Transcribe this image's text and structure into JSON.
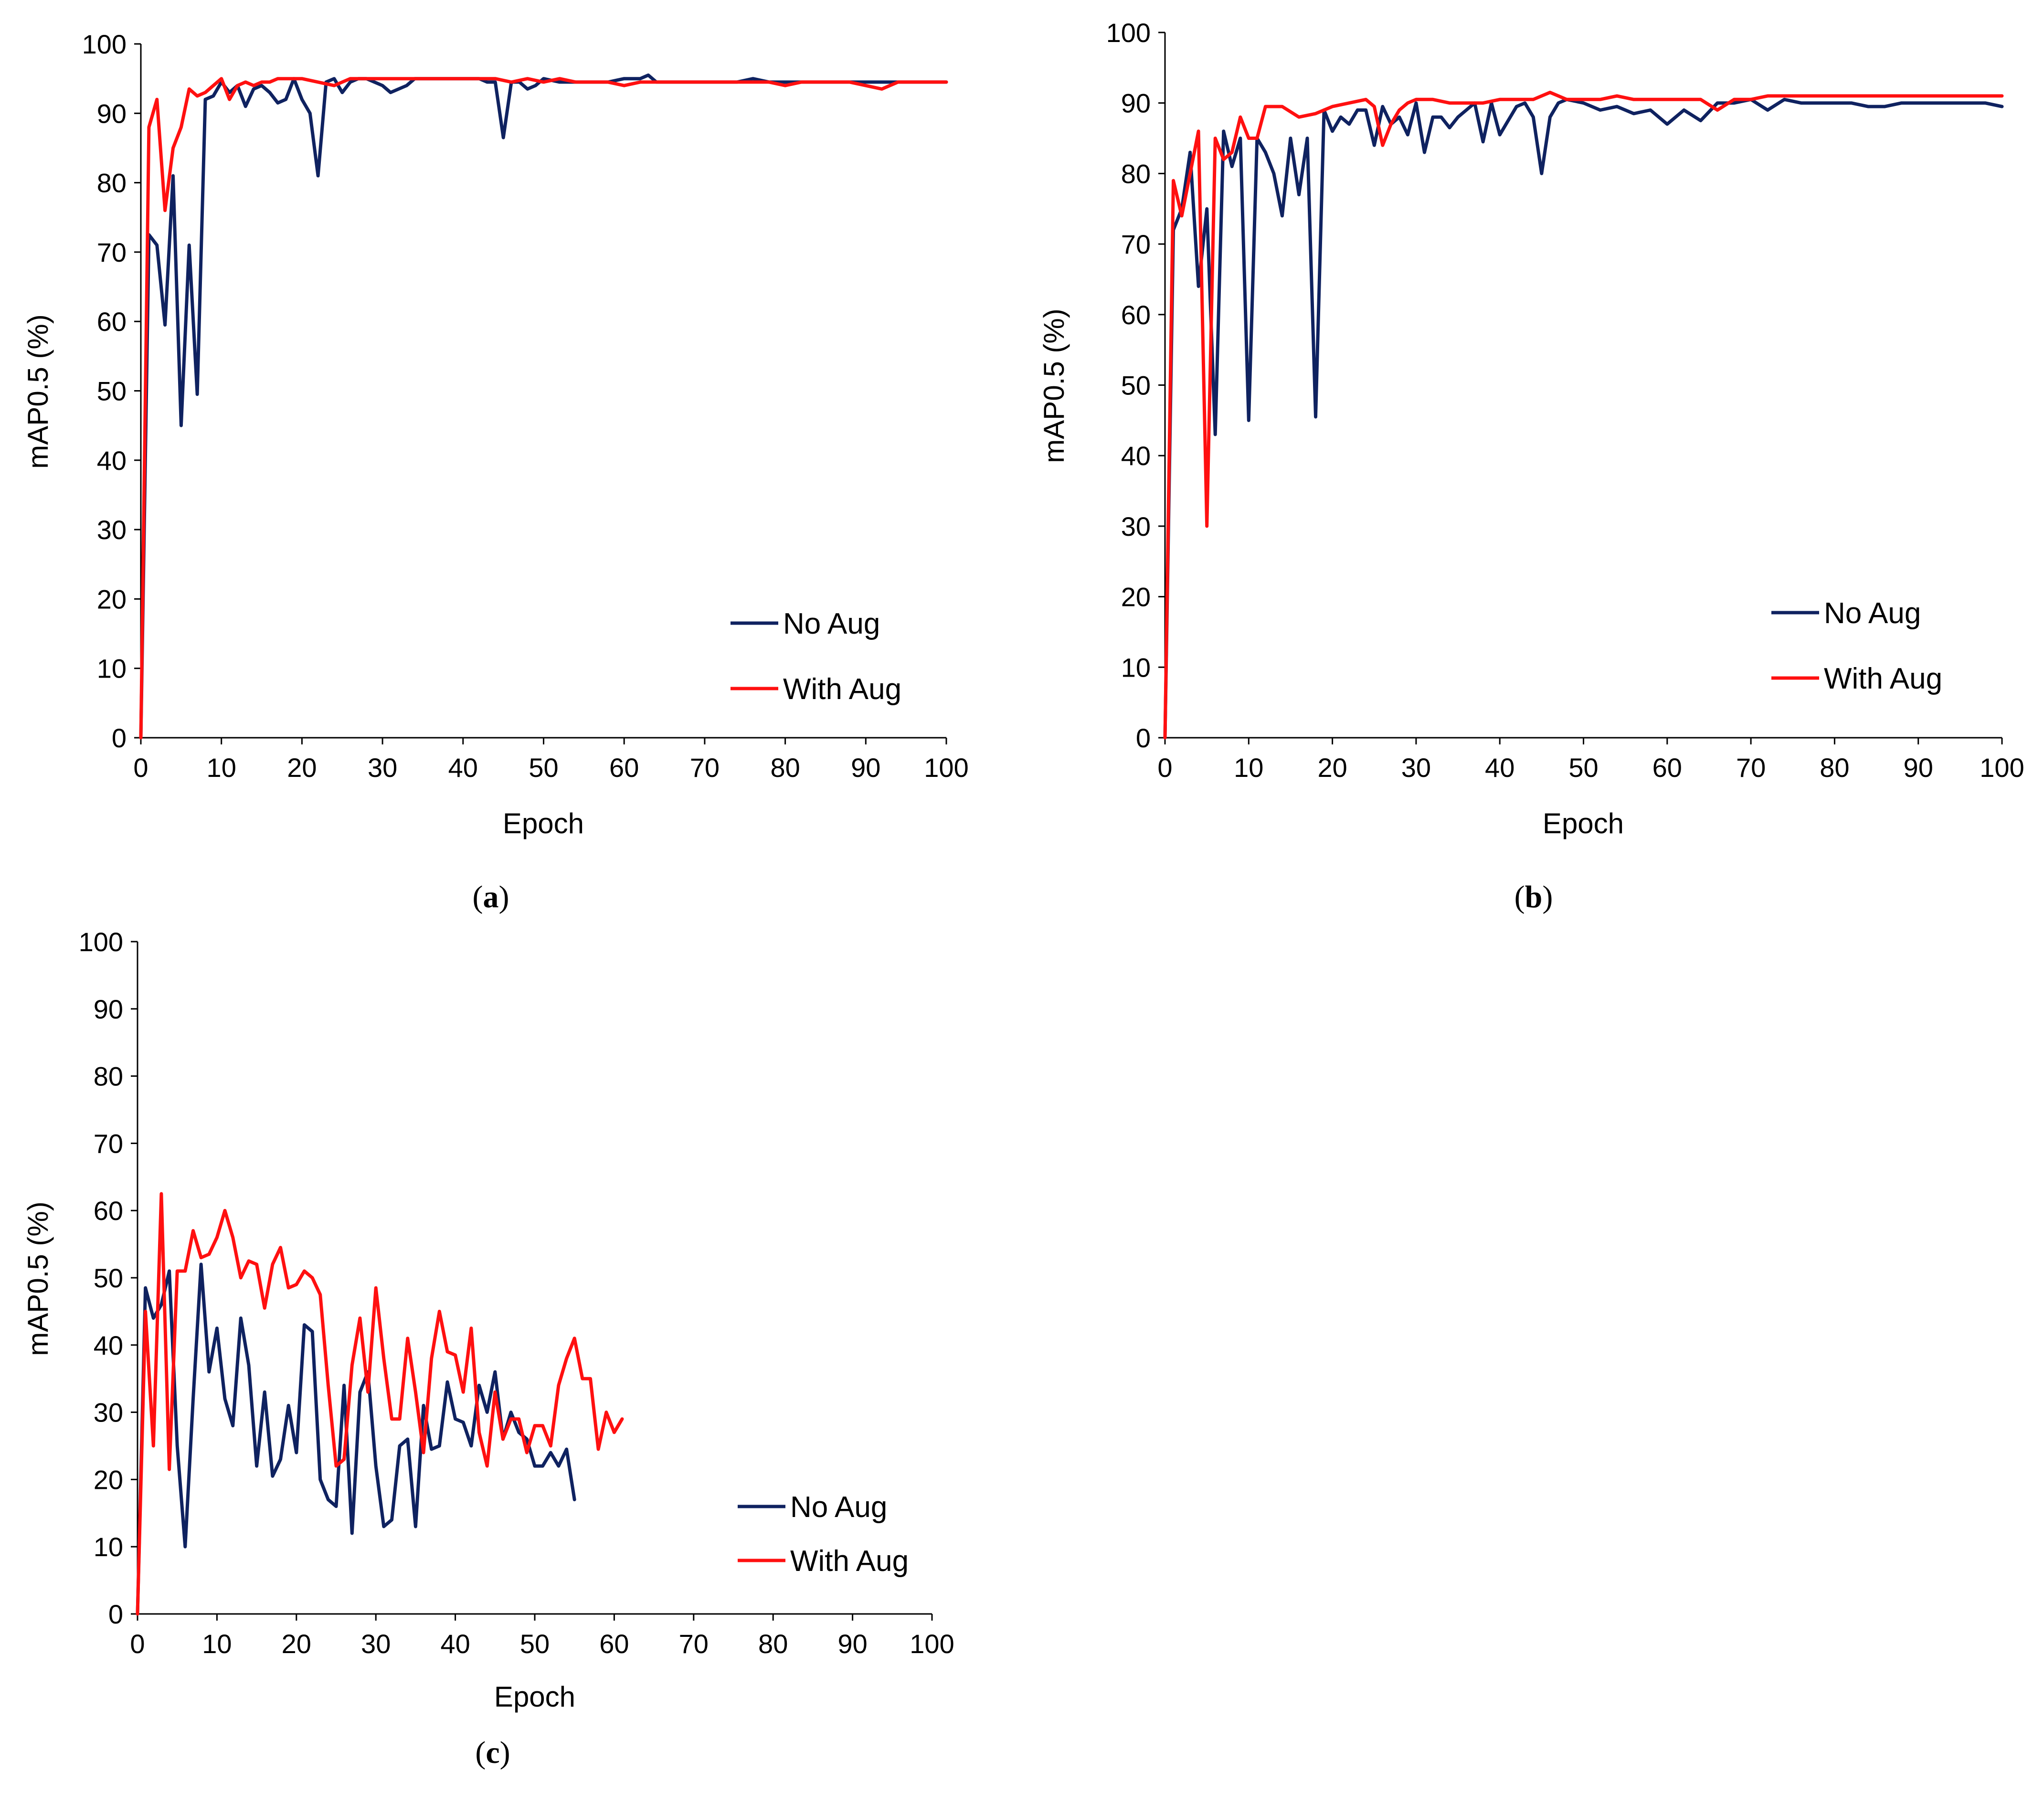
{
  "chart_data": [
    {
      "id": "a",
      "type": "line",
      "caption_letter": "a",
      "xlabel": "Epoch",
      "ylabel": "mAP0.5 (%)",
      "xlim": [
        0,
        100
      ],
      "ylim": [
        0,
        100
      ],
      "xticks": [
        0,
        10,
        20,
        30,
        40,
        50,
        60,
        70,
        80,
        90,
        100
      ],
      "yticks": [
        0,
        10,
        20,
        30,
        40,
        50,
        60,
        70,
        80,
        90,
        100
      ],
      "legend_position": "lower-right",
      "series": [
        {
          "name": "No Aug",
          "color": "#0f2260",
          "x": [
            0,
            1,
            2,
            3,
            4,
            5,
            6,
            7,
            8,
            9,
            10,
            11,
            12,
            13,
            14,
            15,
            16,
            17,
            18,
            19,
            20,
            21,
            22,
            23,
            24,
            25,
            26,
            27,
            28,
            29,
            30,
            31,
            32,
            33,
            34,
            35,
            36,
            37,
            38,
            39,
            40,
            41,
            42,
            43,
            44,
            45,
            46,
            47,
            48,
            49,
            50,
            52,
            54,
            56,
            58,
            60,
            62,
            63,
            64,
            66,
            68,
            70,
            72,
            74,
            76,
            78,
            80,
            82,
            84,
            86,
            88,
            90,
            92,
            94,
            96,
            98,
            100
          ],
          "y": [
            0,
            72.5,
            71,
            59.5,
            81,
            45,
            71,
            49.5,
            92,
            92.5,
            94.5,
            93,
            94,
            91,
            93.5,
            94,
            93,
            91.5,
            92,
            95,
            92,
            90,
            81,
            94.5,
            95,
            93,
            94.5,
            95,
            95,
            94.5,
            94,
            93,
            93.5,
            94,
            95,
            95,
            95,
            95,
            95,
            95,
            95,
            95,
            95,
            94.5,
            94.5,
            86.5,
            94.5,
            94.5,
            93.5,
            94,
            95,
            94.5,
            94.5,
            94.5,
            94.5,
            95,
            95,
            95.5,
            94.5,
            94.5,
            94.5,
            94.5,
            94.5,
            94.5,
            95,
            94.5,
            94.5,
            94.5,
            94.5,
            94.5,
            94.5,
            94.5,
            94.5,
            94.5,
            94.5,
            94.5,
            94.5
          ]
        },
        {
          "name": "With Aug",
          "color": "#ff1010",
          "x": [
            0,
            1,
            2,
            3,
            4,
            5,
            6,
            7,
            8,
            9,
            10,
            11,
            12,
            13,
            14,
            15,
            16,
            17,
            18,
            19,
            20,
            22,
            24,
            26,
            28,
            30,
            32,
            34,
            36,
            38,
            40,
            42,
            44,
            46,
            48,
            50,
            52,
            54,
            56,
            58,
            60,
            62,
            64,
            66,
            68,
            70,
            72,
            74,
            76,
            78,
            80,
            82,
            84,
            86,
            88,
            90,
            92,
            94,
            96,
            98,
            100
          ],
          "y": [
            0,
            88,
            92,
            76,
            85,
            88,
            93.5,
            92.5,
            93,
            94,
            95,
            92,
            94,
            94.5,
            94,
            94.5,
            94.5,
            95,
            95,
            95,
            95,
            94.5,
            94,
            95,
            95,
            95,
            95,
            95,
            95,
            95,
            95,
            95,
            95,
            94.5,
            95,
            94.5,
            95,
            94.5,
            94.5,
            94.5,
            94,
            94.5,
            94.5,
            94.5,
            94.5,
            94.5,
            94.5,
            94.5,
            94.5,
            94.5,
            94,
            94.5,
            94.5,
            94.5,
            94.5,
            94,
            93.5,
            94.5,
            94.5,
            94.5,
            94.5
          ]
        }
      ]
    },
    {
      "id": "b",
      "type": "line",
      "caption_letter": "b",
      "xlabel": "Epoch",
      "ylabel": "mAP0.5 (%)",
      "xlim": [
        0,
        100
      ],
      "ylim": [
        0,
        100
      ],
      "xticks": [
        0,
        10,
        20,
        30,
        40,
        50,
        60,
        70,
        80,
        90,
        100
      ],
      "yticks": [
        0,
        10,
        20,
        30,
        40,
        50,
        60,
        70,
        80,
        90,
        100
      ],
      "legend_position": "lower-right",
      "series": [
        {
          "name": "No Aug",
          "color": "#0f2260",
          "x": [
            0,
            1,
            2,
            3,
            4,
            5,
            6,
            7,
            8,
            9,
            10,
            11,
            12,
            13,
            14,
            15,
            16,
            17,
            18,
            19,
            20,
            21,
            22,
            23,
            24,
            25,
            26,
            27,
            28,
            29,
            30,
            31,
            32,
            33,
            34,
            35,
            36,
            37,
            38,
            39,
            40,
            41,
            42,
            43,
            44,
            45,
            46,
            47,
            48,
            50,
            52,
            54,
            56,
            58,
            60,
            62,
            64,
            66,
            68,
            70,
            72,
            74,
            76,
            78,
            80,
            82,
            84,
            86,
            88,
            90,
            92,
            94,
            96,
            98,
            100
          ],
          "y": [
            0,
            72,
            75,
            83,
            64,
            75,
            43,
            86,
            81,
            85,
            45,
            85,
            83,
            80,
            74,
            85,
            77,
            85,
            45.5,
            89,
            86,
            88,
            87,
            89,
            89,
            84,
            89.5,
            87,
            88,
            85.5,
            90,
            83,
            88,
            88,
            86.5,
            88,
            89,
            90,
            84.5,
            90,
            85.5,
            87.5,
            89.5,
            90,
            88,
            80,
            88,
            90,
            90.5,
            90,
            89,
            89.5,
            88.5,
            89,
            87,
            89,
            87.5,
            90,
            90,
            90.5,
            89,
            90.5,
            90,
            90,
            90,
            90,
            89.5,
            89.5,
            90,
            90,
            90,
            90,
            90,
            90,
            89.5
          ]
        },
        {
          "name": "With Aug",
          "color": "#ff1010",
          "x": [
            0,
            1,
            2,
            3,
            4,
            5,
            6,
            7,
            8,
            9,
            10,
            11,
            12,
            14,
            16,
            18,
            20,
            22,
            24,
            25,
            26,
            27,
            28,
            29,
            30,
            32,
            34,
            36,
            38,
            40,
            42,
            44,
            46,
            48,
            50,
            52,
            54,
            56,
            58,
            60,
            62,
            64,
            66,
            68,
            70,
            72,
            74,
            76,
            78,
            80,
            82,
            84,
            86,
            88,
            90,
            92,
            94,
            96,
            98,
            100
          ],
          "y": [
            0,
            79,
            74,
            80,
            86,
            30,
            85,
            82,
            83,
            88,
            85,
            85,
            89.5,
            89.5,
            88,
            88.5,
            89.5,
            90,
            90.5,
            89.5,
            84,
            87,
            89,
            90,
            90.5,
            90.5,
            90,
            90,
            90,
            90.5,
            90.5,
            90.5,
            91.5,
            90.5,
            90.5,
            90.5,
            91,
            90.5,
            90.5,
            90.5,
            90.5,
            90.5,
            89,
            90.5,
            90.5,
            91,
            91,
            91,
            91,
            91,
            91,
            91,
            91,
            91,
            91,
            91,
            91,
            91,
            91,
            91
          ]
        }
      ]
    },
    {
      "id": "c",
      "type": "line",
      "caption_letter": "c",
      "xlabel": "Epoch",
      "ylabel": "mAP0.5 (%)",
      "xlim": [
        0,
        100
      ],
      "ylim": [
        0,
        100
      ],
      "xticks": [
        0,
        10,
        20,
        30,
        40,
        50,
        60,
        70,
        80,
        90,
        100
      ],
      "yticks": [
        0,
        10,
        20,
        30,
        40,
        50,
        60,
        70,
        80,
        90,
        100
      ],
      "legend_position": "bottom-center-right",
      "series": [
        {
          "name": "No Aug",
          "color": "#0f2260",
          "x": [
            0,
            1,
            2,
            3,
            4,
            5,
            6,
            7,
            8,
            9,
            10,
            11,
            12,
            13,
            14,
            15,
            16,
            17,
            18,
            19,
            20,
            21,
            22,
            23,
            24,
            25,
            26,
            27,
            28,
            29,
            30,
            31,
            32,
            33,
            34,
            35,
            36,
            37,
            38,
            39,
            40,
            41,
            42,
            43,
            44,
            45,
            46,
            47,
            48,
            49,
            50,
            51,
            52,
            53,
            54,
            55
          ],
          "y": [
            0,
            48.5,
            44,
            46,
            51,
            25,
            10,
            32,
            52,
            36,
            42.5,
            32,
            28,
            44,
            37,
            22,
            33,
            20.5,
            23,
            31,
            24,
            43,
            42,
            20,
            17,
            16,
            34,
            12,
            33,
            36,
            22,
            13,
            14,
            25,
            26,
            13,
            31,
            24.5,
            25,
            34.5,
            29,
            28.5,
            25,
            34,
            30,
            36,
            26,
            30,
            27,
            26,
            22,
            22,
            24,
            22,
            24.5,
            17
          ]
        },
        {
          "name": "With Aug",
          "color": "#ff1010",
          "x": [
            0,
            1,
            2,
            3,
            4,
            5,
            6,
            7,
            8,
            9,
            10,
            11,
            12,
            13,
            14,
            15,
            16,
            17,
            18,
            19,
            20,
            21,
            22,
            23,
            24,
            25,
            26,
            27,
            28,
            29,
            30,
            31,
            32,
            33,
            34,
            35,
            36,
            37,
            38,
            39,
            40,
            41,
            42,
            43,
            44,
            45,
            46,
            47,
            48,
            49,
            50,
            51,
            52,
            53,
            54,
            55,
            56,
            57,
            58,
            59,
            60,
            61
          ],
          "y": [
            0,
            45,
            25,
            62.5,
            21.5,
            51,
            51,
            57,
            53,
            53.5,
            56,
            60,
            56,
            50,
            52.5,
            52,
            45.5,
            52,
            54.5,
            48.5,
            49,
            51,
            50,
            47.5,
            34,
            22,
            23,
            37,
            44,
            33,
            48.5,
            38,
            29,
            29,
            41,
            33,
            24,
            38,
            45,
            39,
            38.5,
            33,
            42.5,
            27,
            22,
            33,
            26,
            29,
            29,
            24,
            28,
            28,
            25,
            34,
            38,
            41,
            35,
            35,
            24.5,
            30,
            27,
            29
          ]
        }
      ]
    }
  ]
}
